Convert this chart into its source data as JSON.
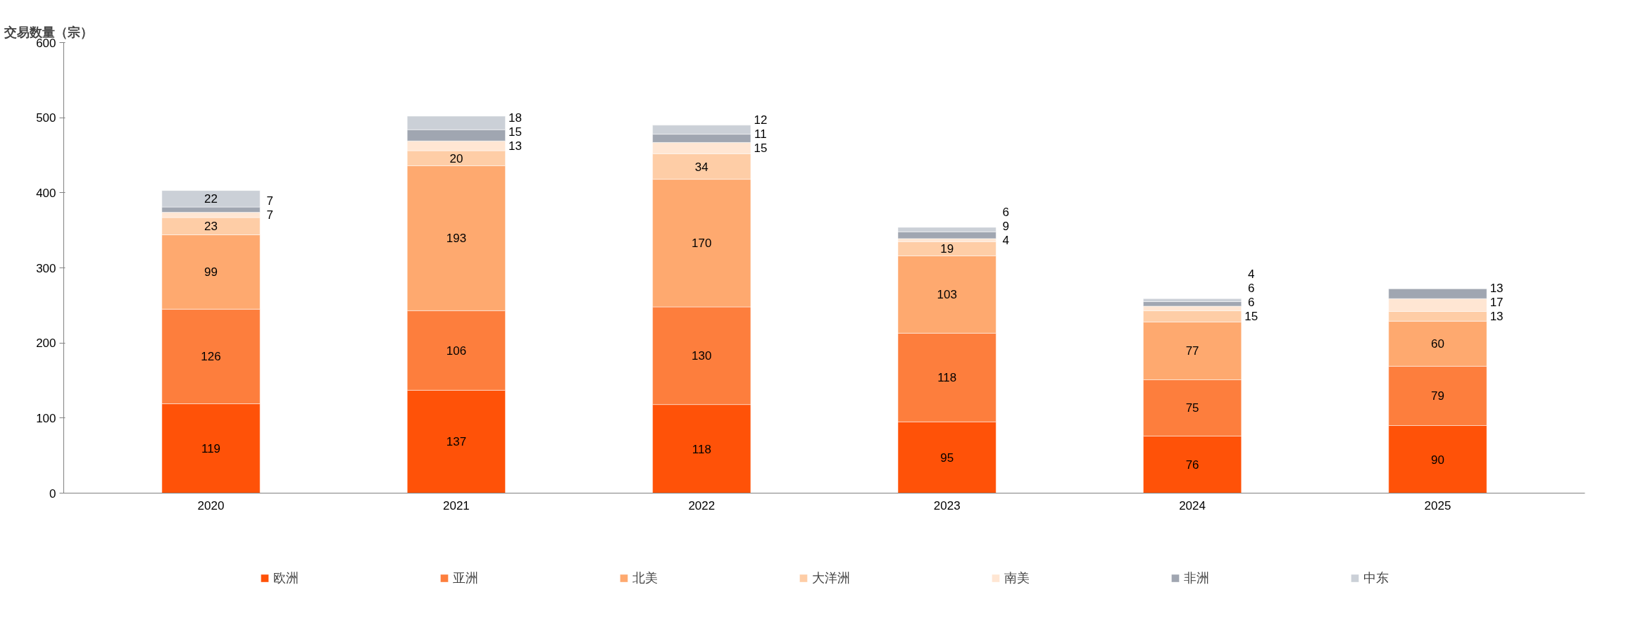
{
  "chart_data": {
    "type": "bar",
    "stacked": true,
    "ylabel": "交易数量（宗）",
    "categories": [
      "2020",
      "2021",
      "2022",
      "2023",
      "2024",
      "2025"
    ],
    "series": [
      {
        "name": "欧洲",
        "color": "#ff5208",
        "values": [
          119,
          137,
          118,
          95,
          76,
          90
        ]
      },
      {
        "name": "亚洲",
        "color": "#fd7e3d",
        "values": [
          126,
          106,
          130,
          118,
          75,
          79
        ]
      },
      {
        "name": "北美",
        "color": "#fea96f",
        "values": [
          99,
          193,
          170,
          103,
          77,
          60
        ]
      },
      {
        "name": "大洋洲",
        "color": "#fecda6",
        "values": [
          23,
          20,
          34,
          19,
          15,
          13
        ]
      },
      {
        "name": "南美",
        "color": "#ffe6d3",
        "values": [
          7,
          13,
          15,
          4,
          6,
          17
        ]
      },
      {
        "name": "非洲",
        "color": "#a0a6b1",
        "values": [
          7,
          15,
          11,
          9,
          6,
          13
        ]
      },
      {
        "name": "中东",
        "color": "#cbd0d7",
        "values": [
          22,
          18,
          12,
          6,
          4,
          null
        ]
      }
    ],
    "ylim": [
      0,
      600
    ],
    "yticks": [
      0,
      100,
      200,
      300,
      400,
      500,
      600
    ],
    "data_labels": true,
    "legend": "bottom",
    "grid": false
  }
}
